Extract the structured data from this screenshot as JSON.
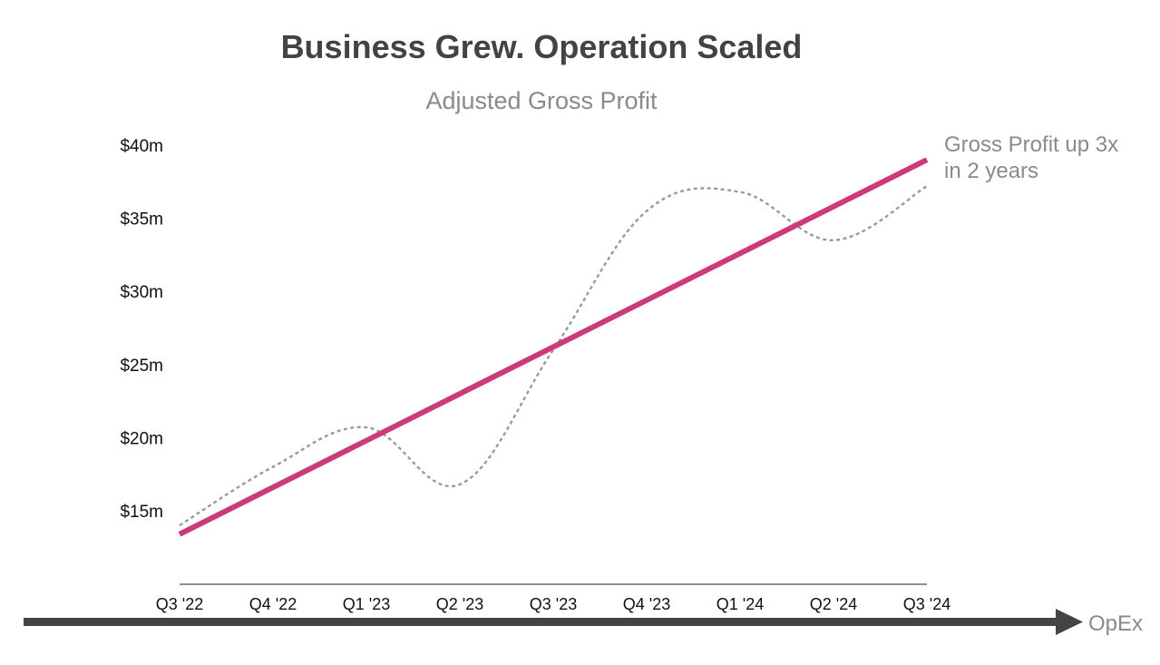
{
  "chart_data": {
    "type": "line",
    "title": "Business Grew. Operation Scaled",
    "subtitle": "Adjusted Gross Profit",
    "categories": [
      "Q3 '22",
      "Q4 '22",
      "Q1 '23",
      "Q2 '23",
      "Q3 '23",
      "Q4 '23",
      "Q1 '24",
      "Q2 '24",
      "Q3 '24"
    ],
    "y_ticks": [
      {
        "value": 15,
        "label": "$15m"
      },
      {
        "value": 20,
        "label": "$20m"
      },
      {
        "value": 25,
        "label": "$25m"
      },
      {
        "value": 30,
        "label": "$30m"
      },
      {
        "value": 35,
        "label": "$35m"
      },
      {
        "value": 40,
        "label": "$40m"
      }
    ],
    "ylim": [
      10,
      41
    ],
    "grid": false,
    "series": [
      {
        "values": [
          14.0,
          18.0,
          20.7,
          16.8,
          26.0,
          35.5,
          36.8,
          33.5,
          37.2
        ],
        "color": "#9a9a9a",
        "style": "dotted",
        "smooth": true
      },
      {
        "values": [
          13.4,
          16.6,
          19.8,
          23.0,
          26.2,
          29.4,
          32.6,
          35.8,
          39.0
        ],
        "color": "#cc3a78",
        "style": "solid",
        "smooth": false
      }
    ],
    "annotations": [
      {
        "lines": [
          "Gross Profit up 3x",
          "in 2 years"
        ],
        "anchor_series": 1,
        "anchor_index": 8
      }
    ],
    "bottom_arrow": {
      "label": "OpEx",
      "color": "#444444"
    }
  }
}
